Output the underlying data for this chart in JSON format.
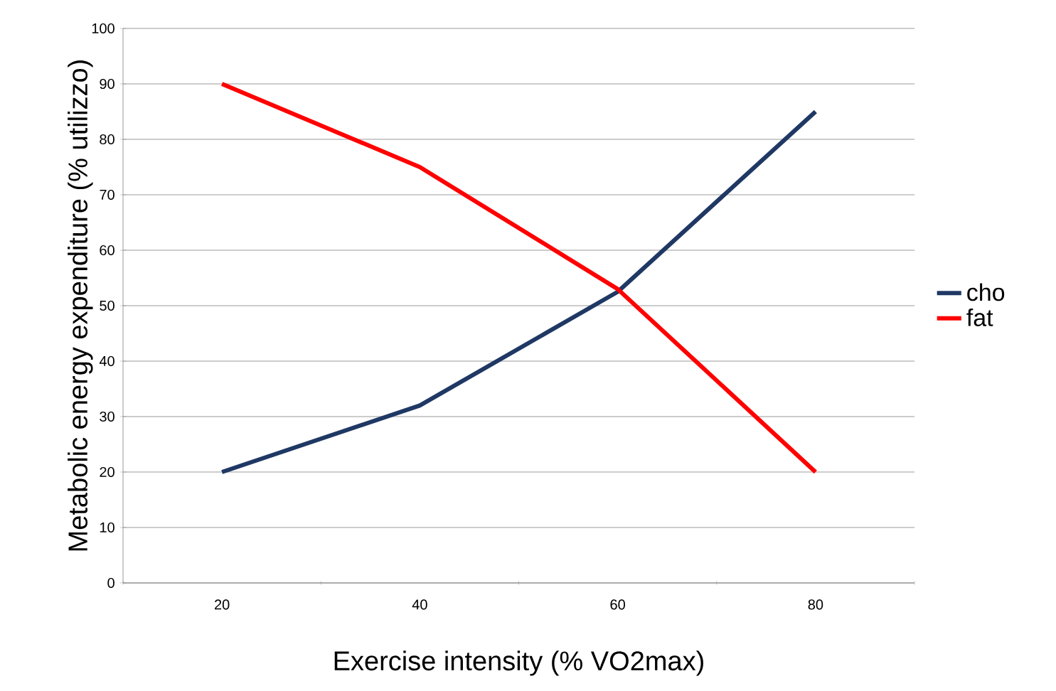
{
  "chart_data": {
    "type": "line",
    "xlabel": "Exercise  intensity  (% VO2max)",
    "ylabel": "Metabolic  energy  expenditure  (% utilizzo)",
    "categories": [
      "20",
      "40",
      "60",
      "80"
    ],
    "series": [
      {
        "name": "cho",
        "color": "#1f3864",
        "values": [
          20,
          32,
          52.5,
          85
        ]
      },
      {
        "name": "fat",
        "color": "#ff0000",
        "values": [
          90,
          75,
          53,
          20
        ]
      }
    ],
    "ylim": [
      0,
      100
    ],
    "yticks": [
      0,
      10,
      20,
      30,
      40,
      50,
      60,
      70,
      80,
      90,
      100
    ],
    "grid": "y",
    "legend": "right",
    "marker": "none",
    "line_style": "solid"
  }
}
